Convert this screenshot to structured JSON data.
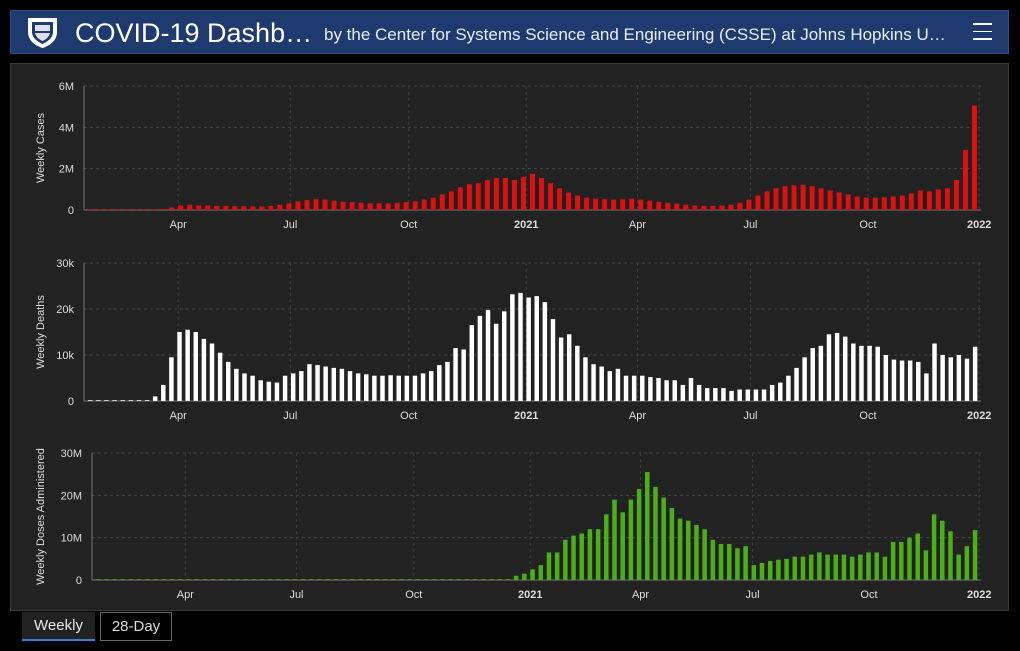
{
  "header": {
    "title": "COVID-19 Dashb…",
    "subtitle": "by the Center for Systems Science and Engineering (CSSE) at Johns Hopkins University"
  },
  "tabs": [
    {
      "label": "Weekly",
      "active": true
    },
    {
      "label": "28-Day",
      "active": false
    }
  ],
  "colors": {
    "cases": "#e01010",
    "deaths": "#ffffff",
    "doses": "#4caf1a",
    "header_bg": "#1e3a6e",
    "active_tab": "#3d7fd6"
  },
  "chart_data": [
    {
      "type": "bar",
      "ylabel": "Weekly Cases",
      "yticks": [
        "0",
        "2M",
        "4M",
        "6M"
      ],
      "ylim": [
        0,
        6
      ],
      "xtick_labels": [
        "Apr",
        "Jul",
        "Oct",
        "2021",
        "Apr",
        "Jul",
        "Oct",
        "2022"
      ],
      "grid": true,
      "unit": "millions",
      "values": [
        0,
        0,
        0,
        0,
        0,
        0,
        0,
        0,
        0.05,
        0.12,
        0.22,
        0.25,
        0.22,
        0.22,
        0.2,
        0.2,
        0.18,
        0.18,
        0.17,
        0.17,
        0.2,
        0.25,
        0.32,
        0.42,
        0.48,
        0.52,
        0.5,
        0.45,
        0.4,
        0.38,
        0.35,
        0.33,
        0.33,
        0.32,
        0.35,
        0.38,
        0.42,
        0.5,
        0.6,
        0.75,
        0.9,
        1.1,
        1.25,
        1.3,
        1.45,
        1.55,
        1.55,
        1.45,
        1.6,
        1.75,
        1.55,
        1.3,
        1.05,
        0.85,
        0.7,
        0.6,
        0.55,
        0.52,
        0.5,
        0.52,
        0.55,
        0.5,
        0.45,
        0.4,
        0.35,
        0.3,
        0.25,
        0.22,
        0.2,
        0.2,
        0.22,
        0.25,
        0.35,
        0.5,
        0.7,
        0.9,
        1.05,
        1.15,
        1.2,
        1.22,
        1.15,
        1.05,
        0.95,
        0.85,
        0.75,
        0.65,
        0.6,
        0.6,
        0.62,
        0.65,
        0.7,
        0.8,
        0.95,
        0.9,
        1.0,
        1.05,
        1.45,
        2.9,
        5.05
      ]
    },
    {
      "type": "bar",
      "ylabel": "Weekly Deaths",
      "yticks": [
        "0",
        "10k",
        "20k",
        "30k"
      ],
      "ylim": [
        0,
        30
      ],
      "xtick_labels": [
        "Apr",
        "Jul",
        "Oct",
        "2021",
        "Apr",
        "Jul",
        "Oct",
        "2022"
      ],
      "grid": true,
      "unit": "thousands",
      "values": [
        0,
        0,
        0,
        0,
        0,
        0,
        0,
        0,
        1,
        3.5,
        9.5,
        15,
        15.5,
        15,
        13.5,
        12.5,
        10.5,
        8.5,
        7,
        6,
        5.5,
        4.5,
        4.2,
        4,
        5.5,
        6,
        6.5,
        8,
        7.8,
        7.5,
        7.2,
        7,
        6.5,
        6,
        5.8,
        5.5,
        5.5,
        5.6,
        5.5,
        5.5,
        5.5,
        6,
        6.5,
        7.8,
        8.5,
        11.5,
        11.2,
        16.5,
        18.5,
        19.8,
        16.8,
        19.5,
        23.2,
        23.5,
        22.5,
        22.8,
        21.5,
        17.8,
        13.8,
        14.5,
        12,
        9.5,
        8,
        7.5,
        6.5,
        7,
        5.5,
        5.5,
        5.5,
        5.2,
        5,
        4.5,
        4.5,
        3.5,
        5,
        3.5,
        2.8,
        2.8,
        2.8,
        2.2,
        2.5,
        2.5,
        2.5,
        2.5,
        3.5,
        4,
        5.5,
        7.2,
        9.5,
        11.5,
        12,
        14.5,
        14.8,
        14,
        12.5,
        12,
        12,
        11.8,
        10,
        9,
        8.8,
        8.8,
        8.5,
        6,
        12.5,
        10,
        9.5,
        10,
        9.2,
        11.8
      ]
    },
    {
      "type": "bar",
      "ylabel": "Weekly Doses Administered",
      "yticks": [
        "0",
        "10M",
        "20M",
        "30M"
      ],
      "ylim": [
        0,
        30
      ],
      "xtick_labels": [
        "Apr",
        "Jul",
        "Oct",
        "2021",
        "Apr",
        "Jul",
        "Oct",
        "2022"
      ],
      "grid": true,
      "unit": "millions",
      "values": [
        0,
        0,
        0,
        0,
        0,
        0,
        0,
        0,
        0,
        0,
        0,
        0,
        0,
        0,
        0,
        0,
        0,
        0,
        0,
        0,
        0,
        0,
        0,
        0,
        0,
        0,
        0,
        0,
        0,
        0,
        0,
        0,
        0,
        0,
        0,
        0,
        0,
        0,
        0,
        0,
        0,
        0,
        0,
        0,
        0,
        0,
        0,
        0,
        0,
        0,
        0,
        1,
        1.5,
        2.5,
        3.5,
        6.5,
        6.5,
        9.5,
        10.5,
        11,
        12,
        12,
        15.5,
        19,
        16,
        19,
        21.5,
        25.5,
        22,
        19.5,
        17,
        14.5,
        14,
        13,
        12,
        9.5,
        8.5,
        8.5,
        7.5,
        8,
        3.5,
        4,
        4.5,
        4.8,
        5,
        5.5,
        5.5,
        6,
        6.5,
        6,
        6,
        6,
        5.5,
        6,
        6.5,
        6.5,
        5.5,
        9,
        9,
        10,
        11,
        7,
        15.5,
        14,
        11.5,
        6,
        8,
        11.8
      ]
    }
  ]
}
